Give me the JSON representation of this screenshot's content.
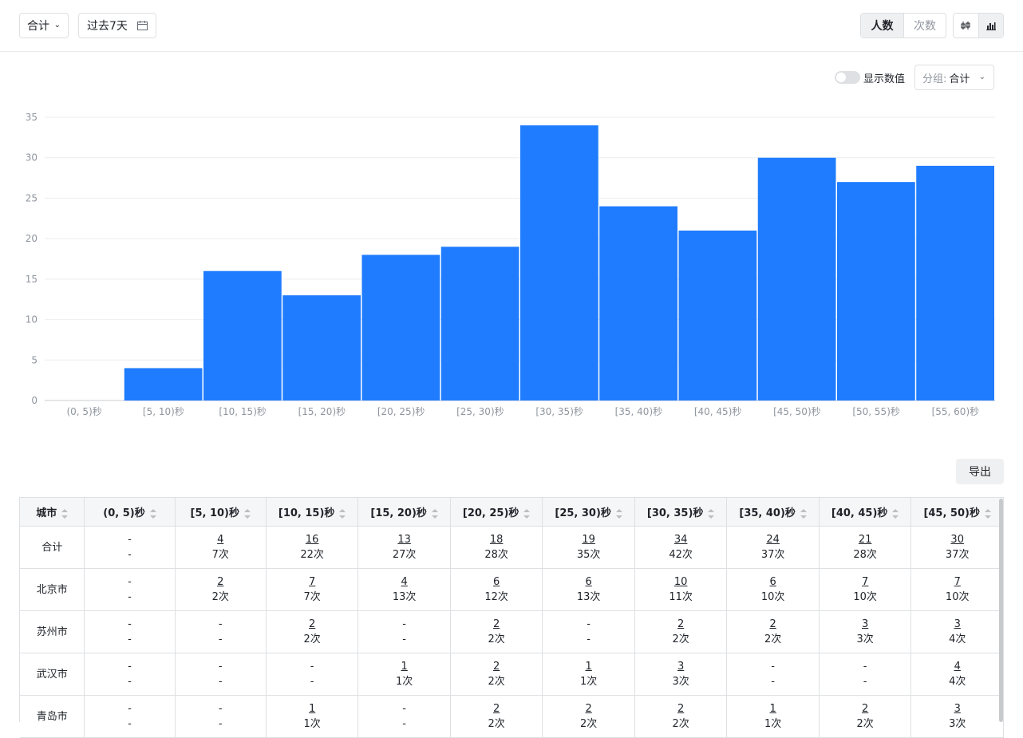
{
  "toolbar": {
    "aggregate": "合计",
    "date_range": "过去7天",
    "metric_tabs": [
      "人数",
      "次数"
    ],
    "active_metric": "人数"
  },
  "chart_controls": {
    "show_values_label": "显示数值",
    "show_values_on": false,
    "group_key": "分组:",
    "group_value": "合计"
  },
  "chart_data": {
    "type": "bar",
    "categories": [
      "(0, 5)秒",
      "[5, 10)秒",
      "[10, 15)秒",
      "[15, 20)秒",
      "[20, 25)秒",
      "[25, 30)秒",
      "[30, 35)秒",
      "[35, 40)秒",
      "[40, 45)秒",
      "[45, 50)秒",
      "[50, 55)秒",
      "[55, 60)秒"
    ],
    "values": [
      0,
      4,
      16,
      13,
      18,
      19,
      34,
      24,
      21,
      30,
      27,
      29
    ],
    "yticks": [
      0,
      5,
      10,
      15,
      20,
      25,
      30,
      35
    ],
    "ylim": [
      0,
      35
    ],
    "color": "#1f7cff",
    "grid": true
  },
  "export_label": "导出",
  "table": {
    "headers": [
      "城市",
      "(0, 5)秒",
      "[5, 10)秒",
      "[10, 15)秒",
      "[15, 20)秒",
      "[20, 25)秒",
      "[25, 30)秒",
      "[30, 35)秒",
      "[35, 40)秒",
      "[40, 45)秒",
      "[45, 50)秒"
    ],
    "rows": [
      {
        "city": "合计",
        "cells": [
          [
            "-",
            "-"
          ],
          [
            "4",
            "7次"
          ],
          [
            "16",
            "22次"
          ],
          [
            "13",
            "27次"
          ],
          [
            "18",
            "28次"
          ],
          [
            "19",
            "35次"
          ],
          [
            "34",
            "42次"
          ],
          [
            "24",
            "37次"
          ],
          [
            "21",
            "28次"
          ],
          [
            "30",
            "37次"
          ]
        ]
      },
      {
        "city": "北京市",
        "cells": [
          [
            "-",
            "-"
          ],
          [
            "2",
            "2次"
          ],
          [
            "7",
            "7次"
          ],
          [
            "4",
            "13次"
          ],
          [
            "6",
            "12次"
          ],
          [
            "6",
            "13次"
          ],
          [
            "10",
            "11次"
          ],
          [
            "6",
            "10次"
          ],
          [
            "7",
            "10次"
          ],
          [
            "7",
            "10次"
          ]
        ]
      },
      {
        "city": "苏州市",
        "cells": [
          [
            "-",
            "-"
          ],
          [
            "-",
            "-"
          ],
          [
            "2",
            "2次"
          ],
          [
            "-",
            "-"
          ],
          [
            "2",
            "2次"
          ],
          [
            "-",
            "-"
          ],
          [
            "2",
            "2次"
          ],
          [
            "2",
            "2次"
          ],
          [
            "3",
            "3次"
          ],
          [
            "3",
            "4次"
          ]
        ]
      },
      {
        "city": "武汉市",
        "cells": [
          [
            "-",
            "-"
          ],
          [
            "-",
            "-"
          ],
          [
            "-",
            "-"
          ],
          [
            "1",
            "1次"
          ],
          [
            "2",
            "2次"
          ],
          [
            "1",
            "1次"
          ],
          [
            "3",
            "3次"
          ],
          [
            "-",
            "-"
          ],
          [
            "-",
            "-"
          ],
          [
            "4",
            "4次"
          ]
        ]
      },
      {
        "city": "青岛市",
        "cells": [
          [
            "-",
            "-"
          ],
          [
            "-",
            "-"
          ],
          [
            "1",
            "1次"
          ],
          [
            "-",
            "-"
          ],
          [
            "2",
            "2次"
          ],
          [
            "2",
            "2次"
          ],
          [
            "2",
            "2次"
          ],
          [
            "1",
            "1次"
          ],
          [
            "2",
            "2次"
          ],
          [
            "3",
            "3次"
          ]
        ]
      }
    ]
  }
}
